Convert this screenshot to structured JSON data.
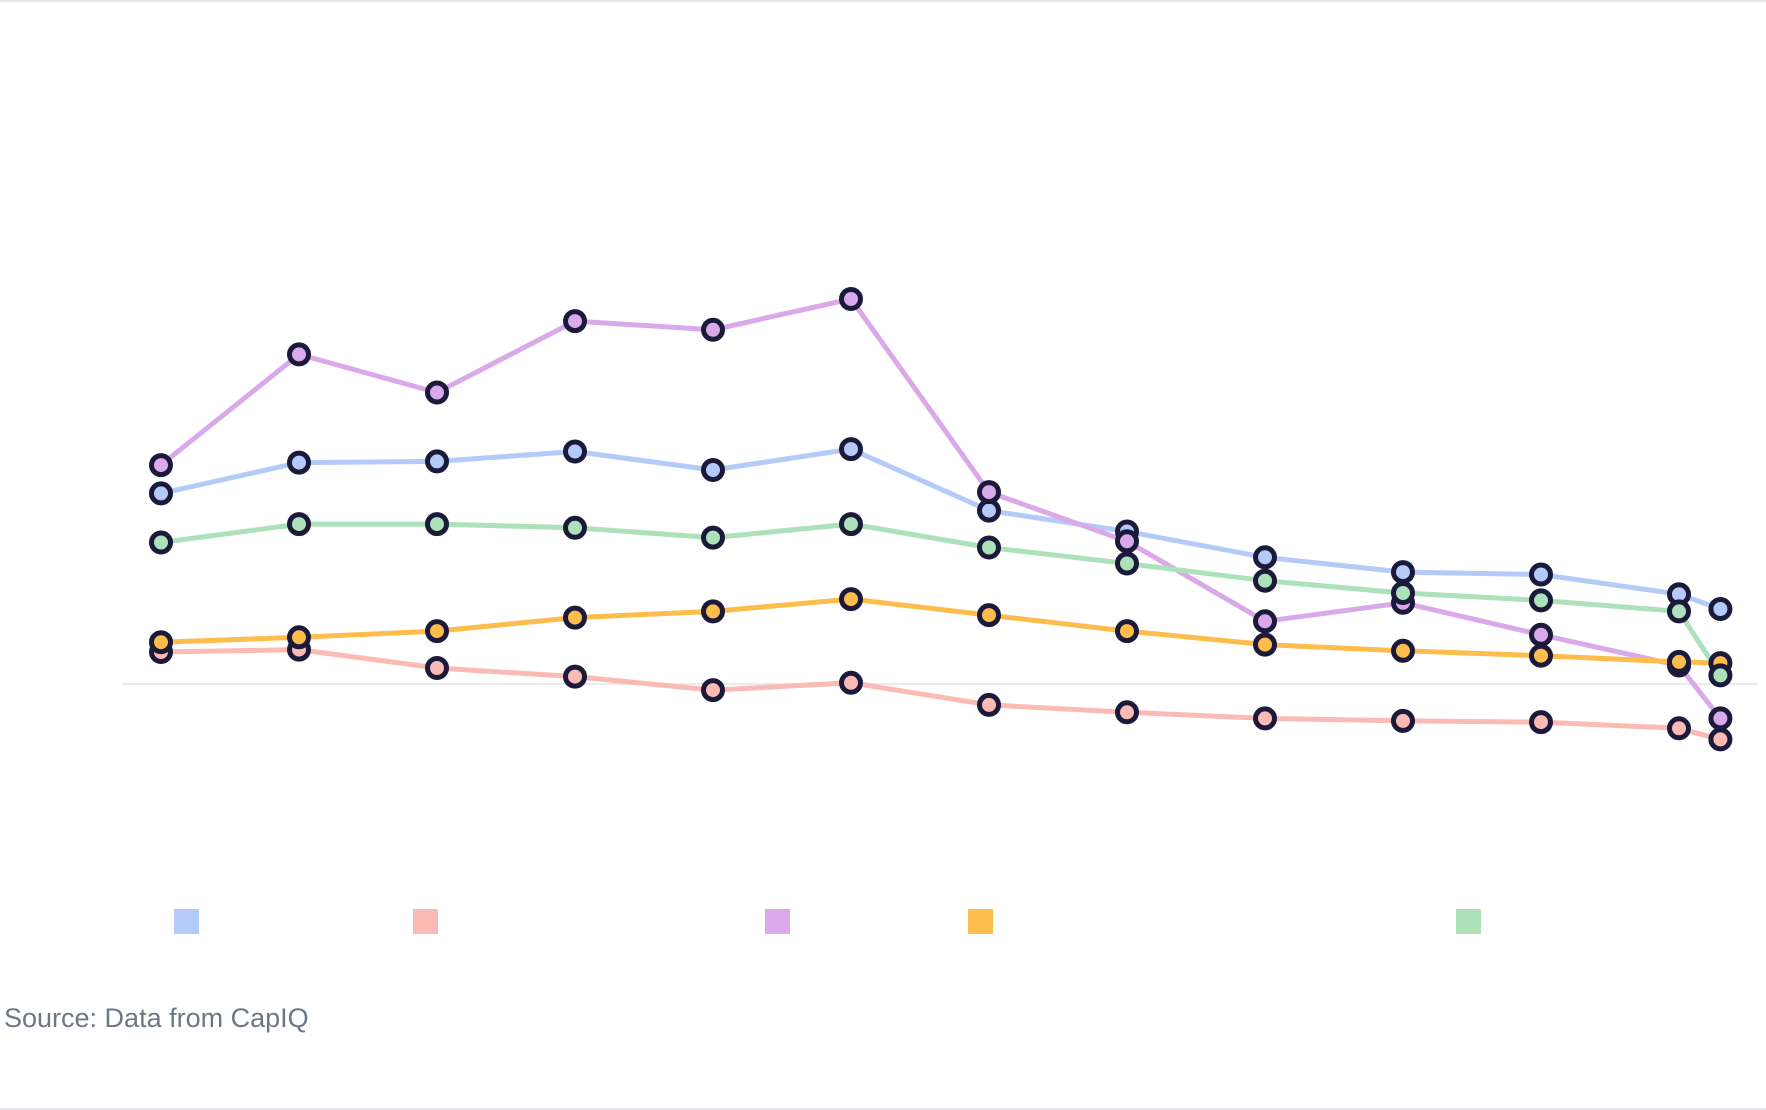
{
  "source": "Source: Data from CapIQ",
  "chart_data": {
    "type": "line",
    "title": "",
    "xlabel": "",
    "ylabel": "",
    "x": [
      0,
      1,
      2,
      3,
      4,
      5,
      6,
      7,
      8,
      9,
      10,
      11,
      11.3
    ],
    "ylim": [
      -20,
      30
    ],
    "zero_line": true,
    "grid": false,
    "legend": "bottom",
    "series": [
      {
        "color": "#b4cbf9",
        "values": [
          15.5,
          18.0,
          18.1,
          18.9,
          17.4,
          19.1,
          14.1,
          12.4,
          10.3,
          9.1,
          8.9,
          7.3,
          6.1
        ]
      },
      {
        "color": "#fbbab4",
        "values": [
          2.6,
          2.8,
          1.3,
          0.6,
          -0.5,
          0.1,
          -1.7,
          -2.3,
          -2.8,
          -3.0,
          -3.1,
          -3.6,
          -4.5
        ]
      },
      {
        "color": "#d9a9e9",
        "values": [
          17.8,
          26.8,
          23.7,
          29.5,
          28.8,
          31.3,
          15.6,
          11.6,
          5.1,
          6.6,
          4.0,
          1.5,
          -2.8
        ]
      },
      {
        "color": "#fdbd4c",
        "values": [
          3.4,
          3.8,
          4.3,
          5.4,
          5.9,
          6.9,
          5.6,
          4.3,
          3.2,
          2.7,
          2.3,
          1.8,
          1.7
        ]
      },
      {
        "color": "#ace1b9",
        "values": [
          11.5,
          13.0,
          13.0,
          12.7,
          11.9,
          13.0,
          11.1,
          9.8,
          8.4,
          7.4,
          6.8,
          5.9,
          0.7
        ]
      }
    ]
  }
}
